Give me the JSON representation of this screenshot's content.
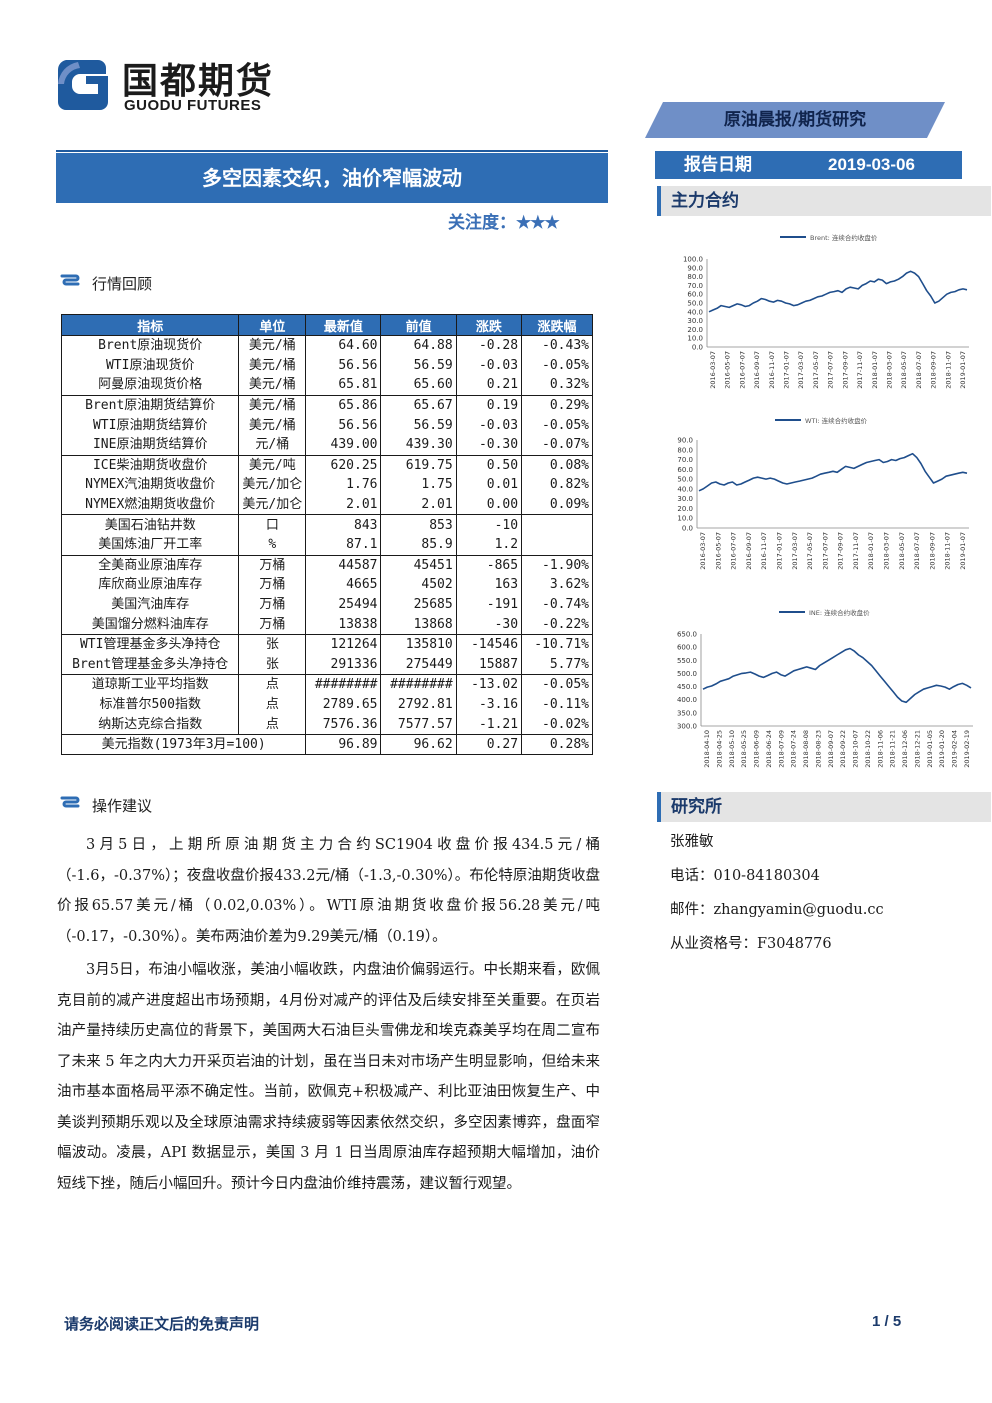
{
  "logo": {
    "cn": "国都期货",
    "en": "GUODU FUTURES"
  },
  "banner": "原油晨报/期货研究",
  "title": "多空因素交织，油价窄幅波动",
  "attention": {
    "label": "关注度：",
    "stars": "★★★"
  },
  "report_date": {
    "label": "报告日期",
    "value": "2019-03-06"
  },
  "side": {
    "main_contract": "主力合约",
    "research": "研究所"
  },
  "sections": {
    "market_review": "行情回顾",
    "suggestion": "操作建议"
  },
  "table": {
    "headers": [
      "指标",
      "单位",
      "最新值",
      "前值",
      "涨跌",
      "涨跌幅"
    ],
    "rows": [
      [
        "Brent原油现货价",
        "美元/桶",
        "64.60",
        "64.88",
        "-0.28",
        "-0.43%"
      ],
      [
        "WTI原油现货价",
        "美元/桶",
        "56.56",
        "56.59",
        "-0.03",
        "-0.05%"
      ],
      [
        "阿曼原油现货价格",
        "美元/桶",
        "65.81",
        "65.60",
        "0.21",
        "0.32%"
      ],
      [
        "Brent原油期货结算价",
        "美元/桶",
        "65.86",
        "65.67",
        "0.19",
        "0.29%"
      ],
      [
        "WTI原油期货结算价",
        "美元/桶",
        "56.56",
        "56.59",
        "-0.03",
        "-0.05%"
      ],
      [
        "INE原油期货结算价",
        "元/桶",
        "439.00",
        "439.30",
        "-0.30",
        "-0.07%"
      ],
      [
        "ICE柴油期货收盘价",
        "美元/吨",
        "620.25",
        "619.75",
        "0.50",
        "0.08%"
      ],
      [
        "NYMEX汽油期货收盘价",
        "美元/加仑",
        "1.76",
        "1.75",
        "0.01",
        "0.82%"
      ],
      [
        "NYMEX燃油期货收盘价",
        "美元/加仑",
        "2.01",
        "2.01",
        "0.00",
        "0.09%"
      ],
      [
        "美国石油钻井数",
        "口",
        "843",
        "853",
        "-10",
        ""
      ],
      [
        "美国炼油厂开工率",
        "%",
        "87.1",
        "85.9",
        "1.2",
        ""
      ],
      [
        "全美商业原油库存",
        "万桶",
        "44587",
        "45451",
        "-865",
        "-1.90%"
      ],
      [
        "库欣商业原油库存",
        "万桶",
        "4665",
        "4502",
        "163",
        "3.62%"
      ],
      [
        "美国汽油库存",
        "万桶",
        "25494",
        "25685",
        "-191",
        "-0.74%"
      ],
      [
        "美国馏分燃料油库存",
        "万桶",
        "13838",
        "13868",
        "-30",
        "-0.22%"
      ],
      [
        "WTI管理基金多头净持仓",
        "张",
        "121264",
        "135810",
        "-14546",
        "-10.71%"
      ],
      [
        "Brent管理基金多头净持仓",
        "张",
        "291336",
        "275449",
        "15887",
        "5.77%"
      ],
      [
        "道琼斯工业平均指数",
        "点",
        "########",
        "########",
        "-13.02",
        "-0.05%"
      ],
      [
        "标准普尔500指数",
        "点",
        "2789.65",
        "2792.81",
        "-3.16",
        "-0.11%"
      ],
      [
        "纳斯达克综合指数",
        "点",
        "7576.36",
        "7577.57",
        "-1.21",
        "-0.02%"
      ],
      [
        "美元指数(1973年3月=100)",
        "",
        "96.89",
        "96.62",
        "0.27",
        "0.28%"
      ]
    ]
  },
  "paragraphs": [
    "3月5日，上期所原油期货主力合约SC1904收盘价报434.5元/桶（-1.6，-0.37%）；夜盘收盘价报433.2元/桶（-1.3,-0.30%）。布伦特原油期货收盘价报65.57美元/桶（0.02,0.03%）。WTI原油期货收盘价报56.28美元/吨（-0.17，-0.30%）。美布两油价差为9.29美元/桶（0.19）。",
    "3月5日，布油小幅收涨，美油小幅收跌，内盘油价偏弱运行。中长期来看，欧佩克目前的减产进度超出市场预期，4月份对减产的评估及后续安排至关重要。在页岩油产量持续历史高位的背景下，美国两大石油巨头雪佛龙和埃克森美孚均在周二宣布了未来 5 年之内大力开采页岩油的计划，虽在当日未对市场产生明显影响，但给未来油市基本面格局平添不确定性。当前，欧佩克+积极减产、利比亚油田恢复生产、中美谈判预期乐观以及全球原油需求持续疲弱等因素依然交织，多空因素博弈，盘面窄幅波动。凌晨，API 数据显示，美国 3 月 1 日当周原油库存超预期大幅增加，油价短线下挫，随后小幅回升。预计今日内盘油价维持震荡，建议暂行观望。"
  ],
  "contact": {
    "name": "张雅敏",
    "phone": "电话：010-84180304",
    "email": "邮件：zhangyamin@guodu.cc",
    "license": "从业资格号：F3048776"
  },
  "footer": {
    "disclaimer": "请务必阅读正文后的免责声明",
    "page": "1 / 5"
  },
  "colors": {
    "primary": "#2e6db4",
    "banner": "#6f8fc7",
    "line": "#1f4e8c"
  },
  "chart_data": [
    {
      "type": "line",
      "legend": "Brent: 连续合约收盘价",
      "ylim": [
        0,
        100
      ],
      "yticks": [
        "100.0",
        "90.0",
        "80.0",
        "70.0",
        "60.0",
        "50.0",
        "40.0",
        "30.0",
        "20.0",
        "10.0",
        "0.0"
      ],
      "xticks": [
        "2016-03-07",
        "2016-05-07",
        "2016-07-07",
        "2016-09-07",
        "2016-11-07",
        "2017-01-07",
        "2017-03-07",
        "2017-05-07",
        "2017-07-07",
        "2017-09-07",
        "2017-11-07",
        "2018-01-07",
        "2018-03-07",
        "2018-05-07",
        "2018-07-07",
        "2018-09-07",
        "2018-11-07",
        "2019-01-07"
      ],
      "values": [
        40,
        42,
        44,
        47,
        46,
        45,
        47,
        49,
        48,
        46,
        47,
        50,
        52,
        55,
        54,
        52,
        51,
        53,
        52,
        50,
        49,
        47,
        48,
        50,
        52,
        53,
        55,
        57,
        58,
        60,
        62,
        63,
        64,
        62,
        66,
        68,
        67,
        66,
        70,
        72,
        75,
        74,
        77,
        76,
        72,
        74,
        75,
        77,
        80,
        84,
        86,
        84,
        80,
        72,
        64,
        58,
        50,
        52,
        56,
        60,
        62,
        63,
        65,
        66,
        65
      ]
    },
    {
      "type": "line",
      "legend": "WTI: 连续合约收盘价",
      "ylim": [
        0,
        90
      ],
      "yticks": [
        "90.0",
        "80.0",
        "70.0",
        "60.0",
        "50.0",
        "40.0",
        "30.0",
        "20.0",
        "10.0",
        "0.0"
      ],
      "xticks": [
        "2016-03-07",
        "2016-05-07",
        "2016-07-07",
        "2016-09-07",
        "2016-11-07",
        "2017-01-07",
        "2017-03-07",
        "2017-05-07",
        "2017-07-07",
        "2017-09-07",
        "2017-11-07",
        "2018-01-07",
        "2018-03-07",
        "2018-05-07",
        "2018-07-07",
        "2018-09-07",
        "2018-11-07",
        "2019-01-07"
      ],
      "values": [
        38,
        40,
        43,
        46,
        47,
        45,
        44,
        46,
        47,
        44,
        45,
        47,
        49,
        51,
        52,
        51,
        50,
        51,
        50,
        48,
        46,
        45,
        46,
        47,
        48,
        49,
        50,
        51,
        53,
        55,
        56,
        57,
        58,
        57,
        60,
        63,
        62,
        61,
        63,
        65,
        67,
        68,
        69,
        70,
        67,
        68,
        70,
        69,
        71,
        72,
        74,
        76,
        72,
        66,
        58,
        52,
        46,
        48,
        50,
        53,
        54,
        55,
        56,
        57,
        56
      ]
    },
    {
      "type": "line",
      "legend": "INE: 连续合约收盘价",
      "ylim": [
        300,
        650
      ],
      "yticks": [
        "650.0",
        "600.0",
        "550.0",
        "500.0",
        "450.0",
        "400.0",
        "350.0",
        "300.0"
      ],
      "xticks": [
        "2018-04-10",
        "2018-04-25",
        "2018-05-10",
        "2018-05-25",
        "2018-06-09",
        "2018-06-24",
        "2018-07-09",
        "2018-07-24",
        "2018-08-08",
        "2018-08-23",
        "2018-09-07",
        "2018-09-22",
        "2018-10-07",
        "2018-10-22",
        "2018-11-06",
        "2018-11-21",
        "2018-12-06",
        "2018-12-21",
        "2019-01-05",
        "2019-01-20",
        "2019-02-04",
        "2019-02-19"
      ],
      "values": [
        440,
        448,
        452,
        460,
        470,
        475,
        480,
        490,
        495,
        500,
        502,
        505,
        498,
        490,
        485,
        492,
        500,
        505,
        495,
        490,
        500,
        510,
        515,
        520,
        525,
        520,
        515,
        530,
        540,
        550,
        560,
        570,
        580,
        590,
        595,
        585,
        570,
        560,
        545,
        530,
        510,
        490,
        470,
        450,
        430,
        410,
        395,
        390,
        405,
        420,
        430,
        440,
        445,
        450,
        455,
        452,
        448,
        440,
        450,
        458,
        462,
        455,
        445
      ]
    }
  ]
}
